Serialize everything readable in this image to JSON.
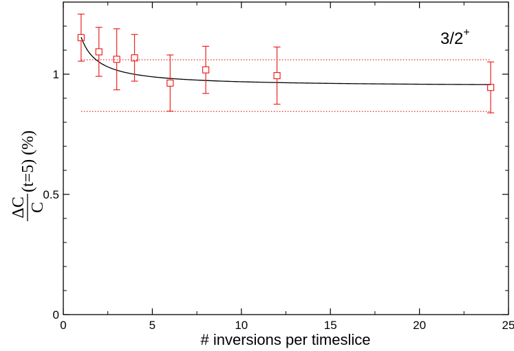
{
  "chart_data": {
    "type": "scatter",
    "xlabel": "# inversions per timeslice",
    "ylabel": {
      "numerator": "ΔC",
      "denominator": "C",
      "suffix": "(t=5) (%)"
    },
    "xlim": [
      0,
      25
    ],
    "ylim": [
      0,
      1.3
    ],
    "x_ticks": [
      0,
      5,
      10,
      15,
      20,
      25
    ],
    "y_ticks": [
      0,
      0.5,
      1
    ],
    "x_tick_labels": [
      "0",
      "5",
      "10",
      "15",
      "20",
      "25"
    ],
    "y_tick_labels": [
      "0",
      "0.5",
      "1"
    ],
    "annotation": {
      "text": "3/2",
      "superscript": "+"
    },
    "grid": false,
    "series": [
      {
        "points": [
          {
            "x": 1,
            "y": 1.152,
            "err": 0.098
          },
          {
            "x": 2,
            "y": 1.093,
            "err": 0.102
          },
          {
            "x": 3,
            "y": 1.062,
            "err": 0.127
          },
          {
            "x": 4,
            "y": 1.068,
            "err": 0.097
          },
          {
            "x": 6,
            "y": 0.963,
            "err": 0.117
          },
          {
            "x": 8,
            "y": 1.018,
            "err": 0.098
          },
          {
            "x": 12,
            "y": 0.994,
            "err": 0.119
          },
          {
            "x": 24,
            "y": 0.945,
            "err": 0.106
          }
        ],
        "color": "#e8231f"
      }
    ],
    "fit_curve": {
      "form": "a + b/x",
      "a": 0.948,
      "b": 0.206,
      "x_range": [
        1,
        24
      ],
      "color": "#000000"
    },
    "reference_lines": [
      {
        "y": 1.06,
        "x_range": [
          1,
          24
        ],
        "style": "dotted",
        "color": "#e8231f"
      },
      {
        "y": 0.845,
        "x_range": [
          1,
          24
        ],
        "style": "dotted",
        "color": "#e8231f"
      }
    ]
  }
}
